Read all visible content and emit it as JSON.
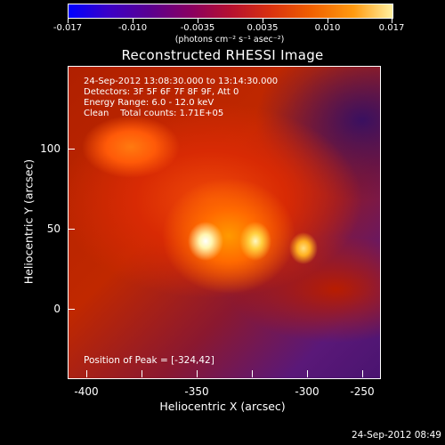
{
  "colorbar": {
    "tick_labels": [
      "-0.017",
      "-0.010",
      "-0.0035",
      "0.0035",
      "0.010",
      "0.017"
    ],
    "units": "(photons cm⁻² s⁻¹ asec⁻²)"
  },
  "title": "Reconstructed RHESSI Image",
  "info": {
    "time_range": "24-Sep-2012 13:08:30.000 to 13:14:30.000",
    "detectors": "Detectors: 3F 5F 6F 7F 8F 9F, Att 0",
    "energy": "Energy Range: 6.0 - 12.0 keV",
    "clean": "Clean    Total counts: 1.71E+05"
  },
  "peak_text": "Position of Peak = [-324,42]",
  "axes": {
    "x_title": "Heliocentric X (arcsec)",
    "y_title": "Heliocentric Y (arcsec)",
    "x_ticks": [
      "-400",
      "-350",
      "-300",
      "-250"
    ],
    "y_ticks": [
      "100",
      "50",
      "0"
    ]
  },
  "timestamp": "24-Sep-2012 08:49",
  "colors": {
    "background": "#000000",
    "foreground": "#ffffff"
  }
}
